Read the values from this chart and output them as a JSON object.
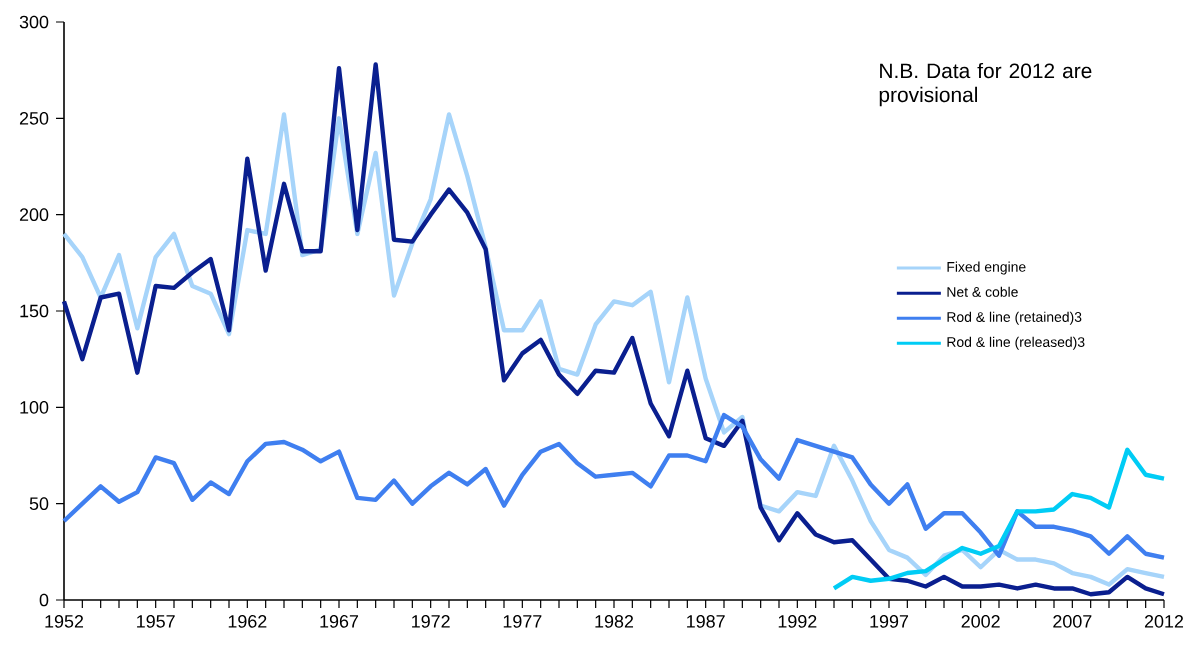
{
  "chart_data": {
    "type": "line",
    "x": [
      1952,
      1953,
      1954,
      1955,
      1956,
      1957,
      1958,
      1959,
      1960,
      1961,
      1962,
      1963,
      1964,
      1965,
      1966,
      1967,
      1968,
      1969,
      1970,
      1971,
      1972,
      1973,
      1974,
      1975,
      1976,
      1977,
      1978,
      1979,
      1980,
      1981,
      1982,
      1983,
      1984,
      1985,
      1986,
      1987,
      1988,
      1989,
      1990,
      1991,
      1992,
      1993,
      1994,
      1995,
      1996,
      1997,
      1998,
      1999,
      2000,
      2001,
      2002,
      2003,
      2004,
      2005,
      2006,
      2007,
      2008,
      2009,
      2010,
      2011,
      2012
    ],
    "series": [
      {
        "name": "Fixed engine",
        "color": "#a6d4fa",
        "values": [
          190,
          178,
          157,
          179,
          141,
          178,
          190,
          163,
          159,
          138,
          192,
          190,
          252,
          179,
          182,
          250,
          190,
          232,
          158,
          185,
          208,
          252,
          220,
          183,
          140,
          140,
          155,
          120,
          117,
          143,
          155,
          153,
          160,
          113,
          157,
          115,
          87,
          95,
          49,
          46,
          56,
          54,
          80,
          62,
          41,
          26,
          22,
          13,
          23,
          26,
          17,
          26,
          21,
          21,
          19,
          14,
          12,
          8,
          16,
          14,
          12
        ]
      },
      {
        "name": "Net & coble",
        "color": "#0a1f8f",
        "values": [
          155,
          125,
          157,
          159,
          118,
          163,
          162,
          170,
          177,
          140,
          229,
          171,
          216,
          181,
          181,
          276,
          192,
          278,
          187,
          186,
          200,
          213,
          201,
          182,
          114,
          128,
          135,
          117,
          107,
          119,
          118,
          136,
          102,
          85,
          119,
          84,
          80,
          93,
          48,
          31,
          45,
          34,
          30,
          31,
          21,
          11,
          10,
          7,
          12,
          7,
          7,
          8,
          6,
          8,
          6,
          6,
          3,
          4,
          12,
          6,
          3
        ]
      },
      {
        "name": "Rod & line (retained)3",
        "color": "#3f7ff0",
        "values": [
          41,
          50,
          59,
          51,
          56,
          74,
          71,
          52,
          61,
          55,
          72,
          81,
          82,
          78,
          72,
          77,
          53,
          52,
          62,
          50,
          59,
          66,
          60,
          68,
          49,
          65,
          77,
          81,
          71,
          64,
          65,
          66,
          59,
          75,
          75,
          72,
          96,
          90,
          73,
          63,
          83,
          80,
          77,
          74,
          60,
          50,
          60,
          37,
          45,
          45,
          35,
          23,
          46,
          38,
          38,
          36,
          33,
          24,
          33,
          24,
          22
        ]
      },
      {
        "name": "Rod & line (released)3",
        "color": "#00ccf5",
        "x": [
          1994,
          1995,
          1996,
          1997,
          1998,
          1999,
          2000,
          2001,
          2002,
          2003,
          2004,
          2005,
          2006,
          2007,
          2008,
          2009,
          2010,
          2011,
          2012
        ],
        "values": [
          6,
          12,
          10,
          11,
          14,
          15,
          21,
          27,
          24,
          28,
          46,
          46,
          47,
          55,
          53,
          48,
          78,
          65,
          63
        ]
      }
    ],
    "xlim": [
      1952,
      2012
    ],
    "ylim": [
      0,
      300
    ],
    "xticks": [
      1952,
      {
        "value": 1953,
        "label": null
      },
      {
        "value": 1954,
        "label": null
      },
      {
        "value": 1955,
        "label": null
      },
      {
        "value": 1956,
        "label": null
      },
      1957,
      {
        "value": 1958,
        "label": null
      },
      {
        "value": 1959,
        "label": null
      },
      {
        "value": 1960,
        "label": null
      },
      {
        "value": 1961,
        "label": null
      },
      1962,
      {
        "value": 1963,
        "label": null
      },
      {
        "value": 1964,
        "label": null
      },
      {
        "value": 1965,
        "label": null
      },
      {
        "value": 1966,
        "label": null
      },
      1967,
      {
        "value": 1968,
        "label": null
      },
      {
        "value": 1969,
        "label": null
      },
      {
        "value": 1970,
        "label": null
      },
      {
        "value": 1971,
        "label": null
      },
      1972,
      {
        "value": 1973,
        "label": null
      },
      {
        "value": 1974,
        "label": null
      },
      {
        "value": 1975,
        "label": null
      },
      {
        "value": 1976,
        "label": null
      },
      1977,
      {
        "value": 1978,
        "label": null
      },
      {
        "value": 1979,
        "label": null
      },
      {
        "value": 1980,
        "label": null
      },
      {
        "value": 1981,
        "label": null
      },
      1982,
      {
        "value": 1983,
        "label": null
      },
      {
        "value": 1984,
        "label": null
      },
      {
        "value": 1985,
        "label": null
      },
      {
        "value": 1986,
        "label": null
      },
      1987,
      {
        "value": 1988,
        "label": null
      },
      {
        "value": 1989,
        "label": null
      },
      {
        "value": 1990,
        "label": null
      },
      {
        "value": 1991,
        "label": null
      },
      1992,
      {
        "value": 1993,
        "label": null
      },
      {
        "value": 1994,
        "label": null
      },
      {
        "value": 1995,
        "label": null
      },
      {
        "value": 1996,
        "label": null
      },
      1997,
      {
        "value": 1998,
        "label": null
      },
      {
        "value": 1999,
        "label": null
      },
      {
        "value": 2000,
        "label": null
      },
      {
        "value": 2001,
        "label": null
      },
      2002,
      {
        "value": 2003,
        "label": null
      },
      {
        "value": 2004,
        "label": null
      },
      {
        "value": 2005,
        "label": null
      },
      {
        "value": 2006,
        "label": null
      },
      2007,
      {
        "value": 2008,
        "label": null
      },
      {
        "value": 2009,
        "label": null
      },
      {
        "value": 2010,
        "label": null
      },
      {
        "value": 2011,
        "label": null
      },
      2012
    ],
    "yticks": [
      0,
      50,
      100,
      150,
      200,
      250,
      300
    ],
    "annotations": [
      "N.B. Data for 2012 are provisional"
    ],
    "legend": "right",
    "grid": false,
    "marker": "none",
    "line_style": "solid"
  }
}
